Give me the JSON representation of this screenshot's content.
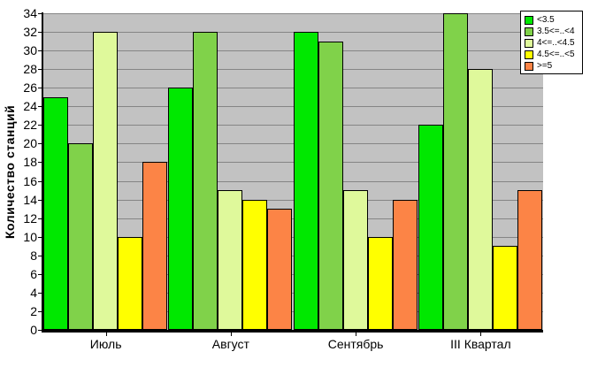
{
  "chart_data": {
    "type": "bar",
    "title": "",
    "xlabel": "",
    "ylabel": "Количество станций",
    "categories": [
      "Июль",
      "Август",
      "Сентябрь",
      "III Квартал"
    ],
    "series": [
      {
        "name": "<3.5",
        "color": "#00E800",
        "values": [
          25,
          26,
          32,
          22
        ]
      },
      {
        "name": "3.5<=..<4",
        "color": "#80D24A",
        "values": [
          20,
          32,
          31,
          34
        ]
      },
      {
        "name": "4<=..<4.5",
        "color": "#DFF99B",
        "values": [
          32,
          15,
          15,
          28
        ]
      },
      {
        "name": "4.5<=..<5",
        "color": "#FFFF00",
        "values": [
          10,
          14,
          10,
          9
        ]
      },
      {
        "name": ">=5",
        "color": "#FC8446",
        "values": [
          18,
          13,
          14,
          15
        ]
      }
    ],
    "ylim": [
      0,
      34
    ],
    "ytick_step": 2,
    "grid": true,
    "legend_position": "top-right",
    "colors": {
      "plot_bg": "#C2C2C2",
      "grid": "#858585",
      "axis": "#000000",
      "text": "#000000",
      "legend_bg": "#FFFFFF"
    }
  }
}
